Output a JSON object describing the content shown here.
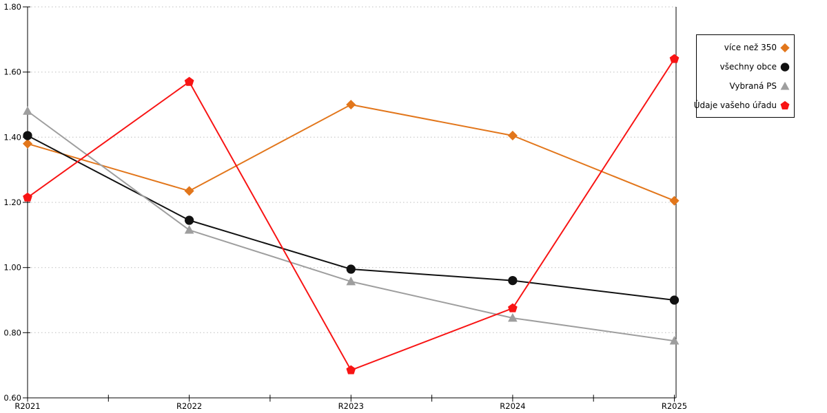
{
  "chart_data": {
    "type": "line",
    "title": "",
    "xlabel": "",
    "ylabel": "",
    "categories": [
      "R2021",
      "R2022",
      "R2023",
      "R2024",
      "R2025"
    ],
    "series": [
      {
        "name": "více než 350",
        "marker": "diamond",
        "color": "#E2761B",
        "values": [
          1.38,
          1.235,
          1.5,
          1.405,
          1.205
        ]
      },
      {
        "name": "všechny obce",
        "marker": "circle",
        "color": "#111111",
        "values": [
          1.405,
          1.145,
          0.995,
          0.96,
          0.9
        ]
      },
      {
        "name": "Vybraná PS",
        "marker": "triangle",
        "color": "#9E9E9E",
        "values": [
          1.48,
          1.115,
          0.957,
          0.845,
          0.775
        ]
      },
      {
        "name": "Údaje vašeho úřadu",
        "marker": "pentagon",
        "color": "#F81414",
        "values": [
          1.215,
          1.57,
          0.685,
          0.875,
          1.64
        ]
      }
    ],
    "ylim": [
      0.6,
      1.8
    ],
    "ytick_step": 0.2,
    "ytick_labels": [
      "0.60",
      "0.80",
      "1.00",
      "1.20",
      "1.40",
      "1.60",
      "1.80"
    ],
    "grid": "horizontal-dotted",
    "grid_color": "#BDBDBD",
    "axis_color": "#000000",
    "legend_position": "right-overlay"
  }
}
